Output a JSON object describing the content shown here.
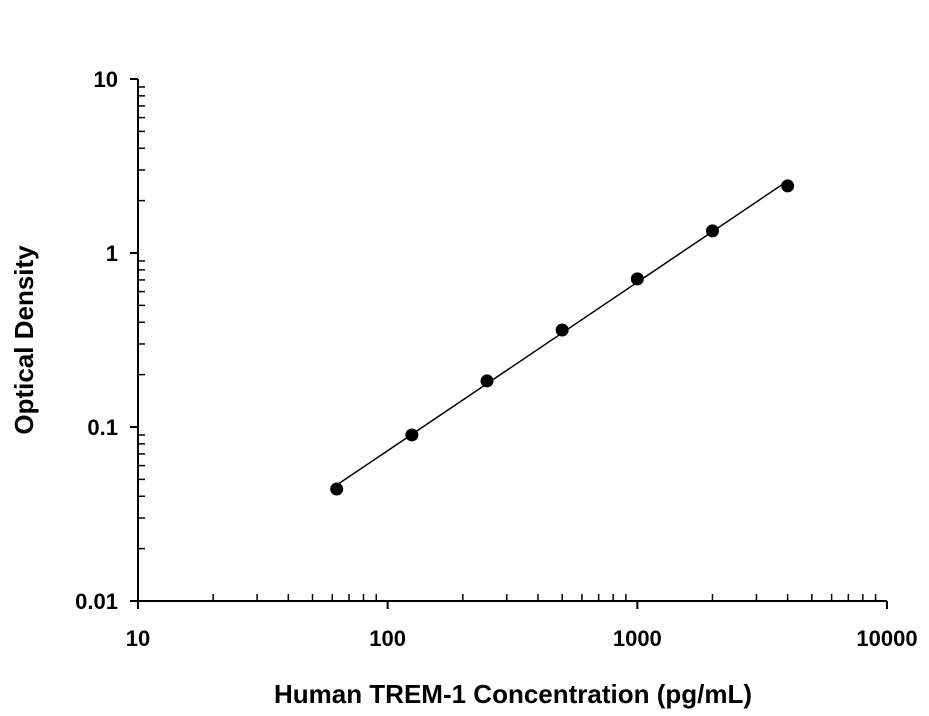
{
  "chart_data": {
    "type": "scatter",
    "title": "",
    "xlabel": "Human TREM-1 Concentration (pg/mL)",
    "ylabel": "Optical Density",
    "xscale": "log",
    "yscale": "log",
    "xlim": [
      10,
      10000
    ],
    "ylim": [
      0.01,
      10
    ],
    "xticks": [
      "10",
      "100",
      "1000",
      "10000"
    ],
    "yticks": [
      "0.01",
      "0.1",
      "1",
      "10"
    ],
    "grid": false,
    "legend": "none",
    "fit_line": true,
    "series": [
      {
        "x": [
          62.5,
          125,
          250,
          500,
          1000,
          2000,
          4000
        ],
        "y": [
          0.044,
          0.09,
          0.184,
          0.361,
          0.71,
          1.34,
          2.43
        ]
      }
    ],
    "colors": {
      "marker": "#000000",
      "line": "#000000"
    }
  }
}
